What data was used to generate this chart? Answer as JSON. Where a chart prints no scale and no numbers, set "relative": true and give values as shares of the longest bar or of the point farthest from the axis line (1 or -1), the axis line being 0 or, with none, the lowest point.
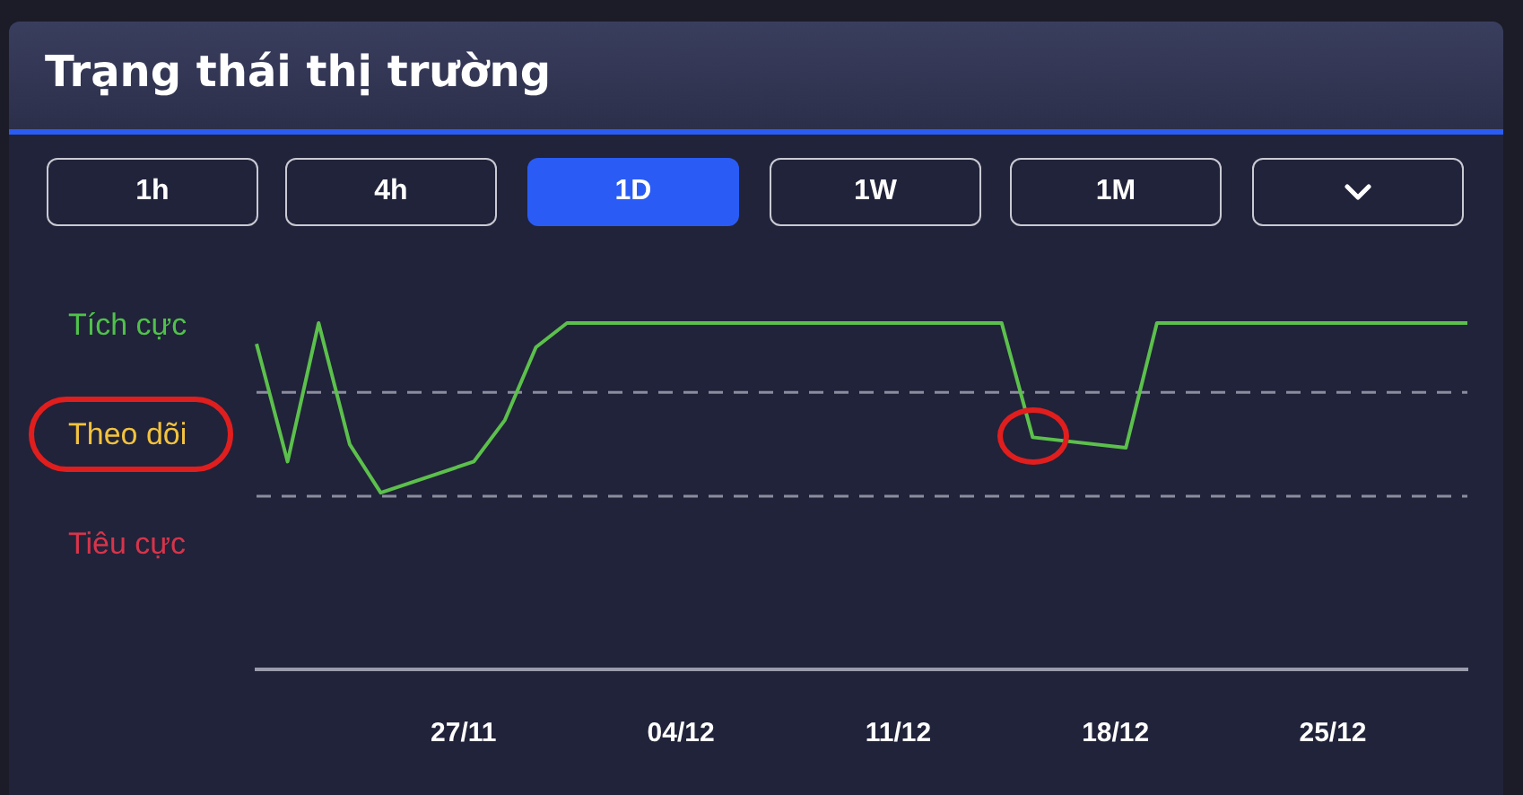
{
  "chart_data": {
    "type": "line",
    "title": "Trạng thái thị trường",
    "annotations": [
      "1h",
      "4h",
      "1D",
      "1W",
      "1M",
      "Tích cực",
      "Theo dõi",
      "Tiêu cực"
    ],
    "relative": true,
    "x": [
      "--11-20T08:00",
      "--11-21T08:00",
      "--11-22T08:00",
      "--11-23T08:00",
      "--11-24T08:00",
      "--11-27T08:00",
      "--11-28T08:00",
      "--11-29T08:00",
      "--11-30T08:00",
      "--12-14T08:00",
      "--12-15T08:00",
      "--12-18T08:00",
      "--12-19T08:00",
      "--12-29T08:00"
    ],
    "series": [
      {
        "color": "#5cc04c",
        "values": [
          0.94,
          0.6,
          1,
          0.65,
          0.51,
          0.6,
          0.72,
          0.93,
          1,
          1,
          0.67,
          0.64,
          1,
          1
        ]
      }
    ],
    "xlim": [
      "--11-20T08:00",
      "--12-29T08:00"
    ],
    "xticks": [
      {
        "value": "--11-27",
        "label": "27/11"
      },
      {
        "value": "--12-04",
        "label": "04/12"
      },
      {
        "value": "--12-11",
        "label": "11/12"
      },
      {
        "value": "--12-18",
        "label": "18/12"
      },
      {
        "value": "--12-25",
        "label": "25/12"
      }
    ],
    "ref_lines": [
      {
        "axis": "y",
        "value": 0.8,
        "color": "#8b8d9e",
        "line_style": "dashed"
      },
      {
        "axis": "y",
        "value": 0.5,
        "color": "#8b8d9e",
        "line_style": "dashed"
      }
    ],
    "grid": false,
    "legend": false,
    "marker": "none",
    "line_style": "solid"
  }
}
